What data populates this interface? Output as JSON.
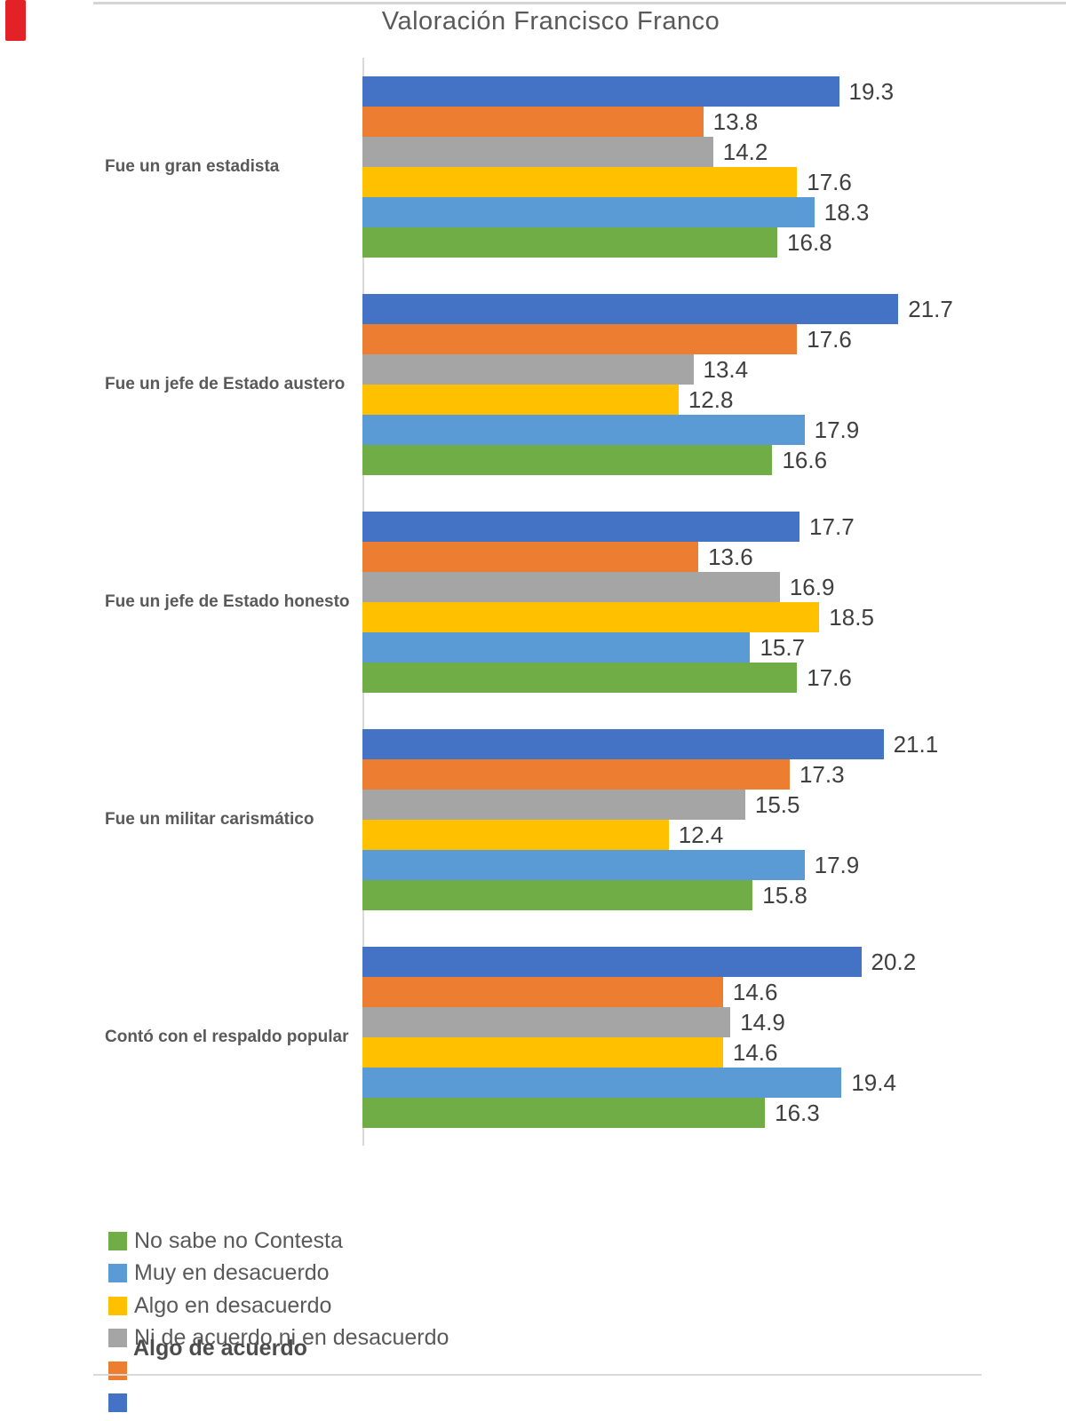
{
  "decorations": {
    "red_marker_color": "#e32227",
    "border_line_color": "#d4d4d4"
  },
  "chart_data": {
    "type": "bar",
    "orientation": "horizontal",
    "title": "Valoración Francisco Franco",
    "categories": [
      "Fue un gran estadista",
      "Fue un jefe de Estado austero",
      "Fue un jefe de Estado honesto",
      "Fue un militar carismático",
      "Contó con el respaldo popular"
    ],
    "series": [
      {
        "name": "",
        "color": "#4472C4",
        "values": [
          19.3,
          21.7,
          17.7,
          21.1,
          20.2
        ]
      },
      {
        "name": "Algo de acuerdo",
        "color": "#ED7D31",
        "values": [
          13.8,
          17.6,
          13.6,
          17.3,
          14.6
        ]
      },
      {
        "name": "Ni de acuerdo ni en desacuerdo",
        "color": "#A5A5A5",
        "values": [
          14.2,
          13.4,
          16.9,
          15.5,
          14.9
        ]
      },
      {
        "name": "Algo en desacuerdo",
        "color": "#FFC000",
        "values": [
          17.6,
          12.8,
          18.5,
          12.4,
          14.6
        ]
      },
      {
        "name": "Muy en desacuerdo",
        "color": "#5B9BD5",
        "values": [
          18.3,
          17.9,
          15.7,
          17.9,
          19.4
        ]
      },
      {
        "name": "No sabe no Contesta",
        "color": "#70AD47",
        "values": [
          16.8,
          16.6,
          17.6,
          15.8,
          16.3
        ]
      }
    ],
    "data_labels": true,
    "axes_ticks_visible": false,
    "grid": false,
    "legend_position": "bottom-left"
  },
  "legend": {
    "items": [
      {
        "label": "No sabe no Contesta",
        "color": "#70AD47"
      },
      {
        "label": "Muy en desacuerdo",
        "color": "#5B9BD5"
      },
      {
        "label": "Algo en desacuerdo",
        "color": "#FFC000"
      },
      {
        "label": "Ni de acuerdo ni en desacuerdo",
        "color": "#A5A5A5"
      },
      {
        "label": "",
        "color": "#ED7D31"
      },
      {
        "label": "",
        "color": "#4472C4"
      }
    ],
    "overlap_label": "Algo de acuerdo"
  }
}
